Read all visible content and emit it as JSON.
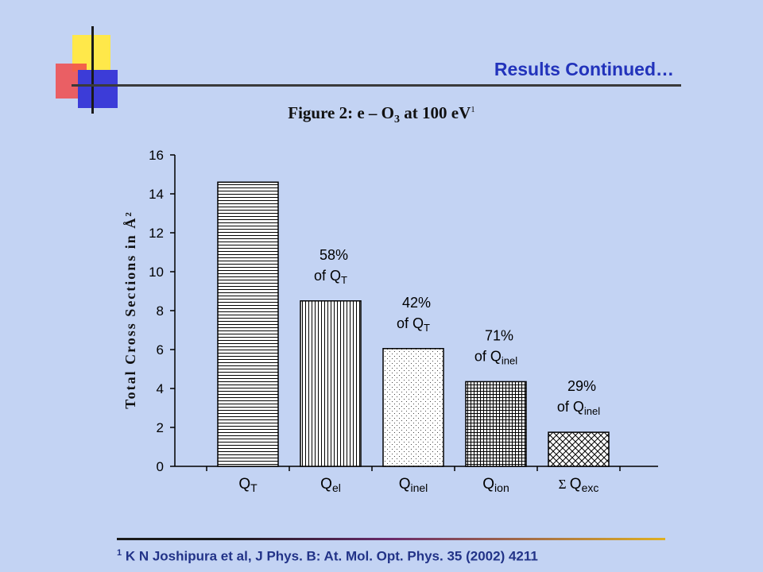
{
  "slide": {
    "title": "Results Continued…",
    "figure_title_main": "Figure 2: e – O",
    "figure_title_sub": "3",
    "figure_title_tail": " at 100 eV",
    "figure_title_ref": "1",
    "footnote_ref": "1",
    "footnote_text": " K N Joshipura et al, J Phys. B: At. Mol. Opt. Phys. 35 (2002) 4211"
  },
  "chart_data": {
    "type": "bar",
    "title": "",
    "ylabel": "Total Cross Sections in Å²",
    "xlabel": "",
    "ylim": [
      0,
      16
    ],
    "yticks": [
      0,
      2,
      4,
      6,
      8,
      10,
      12,
      14,
      16
    ],
    "grid": false,
    "categories": [
      {
        "main": "Q",
        "sub": "T",
        "prefix": ""
      },
      {
        "main": "Q",
        "sub": "el",
        "prefix": ""
      },
      {
        "main": "Q",
        "sub": "inel",
        "prefix": ""
      },
      {
        "main": "Q",
        "sub": "ion",
        "prefix": ""
      },
      {
        "main": "Q",
        "sub": "exc",
        "prefix": "Σ"
      }
    ],
    "values": [
      14.6,
      8.5,
      6.05,
      4.35,
      1.75
    ],
    "patterns": [
      "hlines",
      "vlines",
      "dots",
      "grid",
      "crosshatch"
    ],
    "annotations": [
      null,
      {
        "pct": "58%",
        "of": "of Q",
        "sub": "T"
      },
      {
        "pct": "42%",
        "of": "of Q",
        "sub": "T"
      },
      {
        "pct": "71%",
        "of": "of Q",
        "sub": "inel"
      },
      {
        "pct": "29%",
        "of": "of Q",
        "sub": "inel"
      }
    ]
  }
}
